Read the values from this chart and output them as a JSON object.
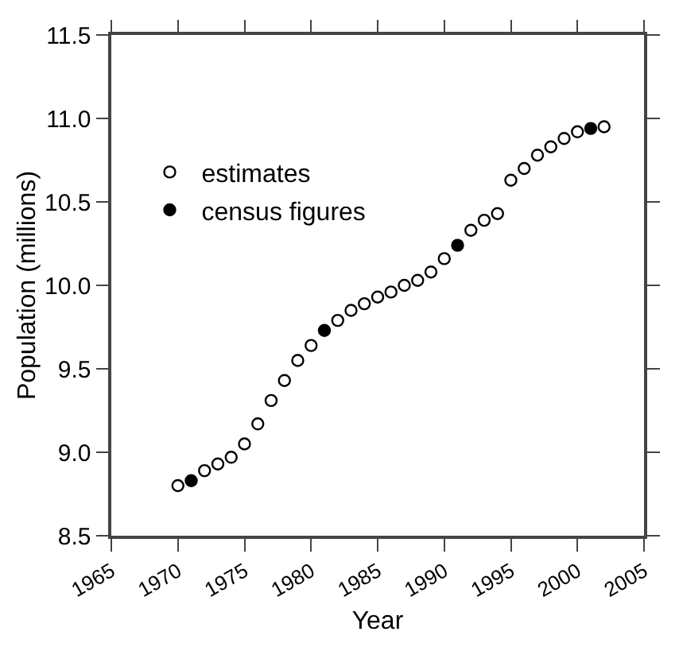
{
  "chart_data": {
    "type": "scatter",
    "xlabel": "Year",
    "ylabel": "Population (millions)",
    "series": [
      {
        "name": "estimates",
        "color": "#000000",
        "marker": "circle-open",
        "x": [
          1970,
          1972,
          1973,
          1974,
          1975,
          1976,
          1977,
          1978,
          1979,
          1980,
          1982,
          1983,
          1984,
          1985,
          1986,
          1987,
          1988,
          1989,
          1990,
          1992,
          1993,
          1994,
          1995,
          1996,
          1997,
          1998,
          1999,
          2000,
          2002
        ],
        "values": [
          8.8,
          8.89,
          8.93,
          8.97,
          9.05,
          9.17,
          9.31,
          9.43,
          9.55,
          9.64,
          9.79,
          9.85,
          9.89,
          9.93,
          9.96,
          10.0,
          10.03,
          10.08,
          10.16,
          10.33,
          10.39,
          10.43,
          10.63,
          10.7,
          10.78,
          10.83,
          10.88,
          10.92,
          10.95
        ]
      },
      {
        "name": "census figures",
        "color": "#000000",
        "marker": "circle",
        "x": [
          1971,
          1981,
          1991,
          2001
        ],
        "values": [
          8.83,
          9.73,
          10.24,
          10.94
        ]
      }
    ],
    "xlim": [
      1965,
      2005
    ],
    "xticks": [
      1965,
      1970,
      1975,
      1980,
      1985,
      1990,
      1995,
      2000,
      2005
    ],
    "ylim": [
      8.5,
      11.5
    ],
    "yticks": [
      {
        "value": 8.5,
        "label": "8.5"
      },
      {
        "value": 9,
        "label": "9.0"
      },
      {
        "value": 9.5,
        "label": "9.5"
      },
      {
        "value": 10,
        "label": "10.0"
      },
      {
        "value": 10.5,
        "label": "10.5"
      },
      {
        "value": 11,
        "label": "11.0"
      },
      {
        "value": 11.5,
        "label": "11.5"
      }
    ],
    "grid": false,
    "legend": "top left"
  }
}
